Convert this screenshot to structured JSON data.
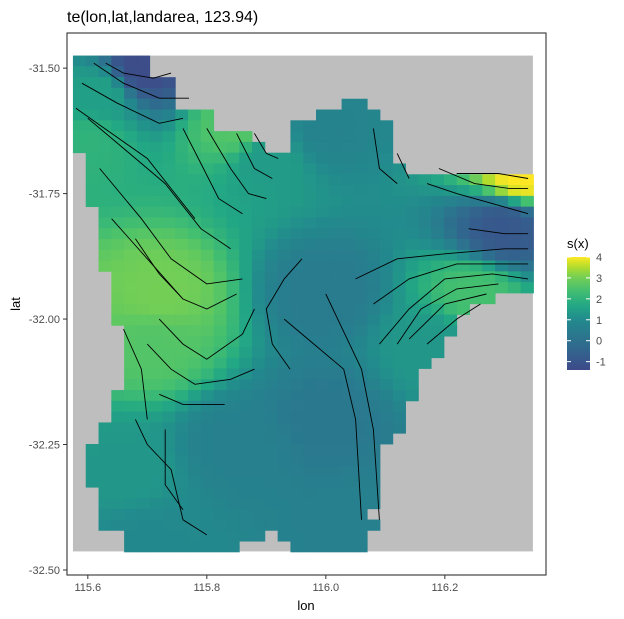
{
  "chart_data": {
    "type": "heatmap",
    "title": "te(lon,lat,landarea, 123.94)",
    "xlabel": "lon",
    "ylabel": "lat",
    "xlim": [
      115.565,
      116.37
    ],
    "ylim": [
      -32.51,
      -31.43
    ],
    "x_ticks": [
      {
        "value": 115.6,
        "label": "115.6"
      },
      {
        "value": 115.8,
        "label": "115.8"
      },
      {
        "value": 116.0,
        "label": "116.0"
      },
      {
        "value": 116.2,
        "label": "116.2"
      }
    ],
    "y_ticks": [
      {
        "value": -31.5,
        "label": "-31.50"
      },
      {
        "value": -31.75,
        "label": "-31.75"
      },
      {
        "value": -32.0,
        "label": "-32.00"
      },
      {
        "value": -32.25,
        "label": "-32.25"
      },
      {
        "value": -32.5,
        "label": "-32.50"
      }
    ],
    "background_extent": {
      "lon": [
        115.575,
        116.348
      ],
      "lat": [
        -32.463,
        -31.475
      ]
    },
    "background_color": "#bebebe",
    "legend": {
      "title": "s(x)",
      "placement": "right",
      "range": [
        -1.4,
        4.0
      ],
      "ticks": [
        {
          "value": 4,
          "label": "4"
        },
        {
          "value": 3,
          "label": "3"
        },
        {
          "value": 2,
          "label": "2"
        },
        {
          "value": 1,
          "label": "1"
        },
        {
          "value": 0,
          "label": "0"
        },
        {
          "value": -1,
          "label": "-1"
        }
      ]
    },
    "colormap": [
      {
        "v": -1.4,
        "color": "#3e4a89"
      },
      {
        "v": -0.5,
        "color": "#32648e"
      },
      {
        "v": 0.3,
        "color": "#2a788e"
      },
      {
        "v": 1.0,
        "color": "#228b8d"
      },
      {
        "v": 1.7,
        "color": "#22a884"
      },
      {
        "v": 2.4,
        "color": "#44bf70"
      },
      {
        "v": 3.1,
        "color": "#7ad151"
      },
      {
        "v": 3.6,
        "color": "#bddf26"
      },
      {
        "v": 4.0,
        "color": "#fde725"
      }
    ],
    "grid_cells": {
      "lon_start": 115.575,
      "lon_step": 0.0215,
      "lat_start": -31.475,
      "lat_step": 0.0215,
      "ncols": 36,
      "nrows": 46
    },
    "surface_anchors": [
      {
        "lon": 115.69,
        "lat": -31.5,
        "value": -1.3
      },
      {
        "lon": 115.62,
        "lat": -31.55,
        "value": 1.5
      },
      {
        "lon": 115.6,
        "lat": -31.65,
        "value": 2.0
      },
      {
        "lon": 115.85,
        "lat": -31.62,
        "value": 2.6
      },
      {
        "lon": 115.9,
        "lat": -31.68,
        "value": 1.4
      },
      {
        "lon": 115.72,
        "lat": -31.95,
        "value": 3.0
      },
      {
        "lon": 115.71,
        "lat": -32.05,
        "value": 2.6
      },
      {
        "lon": 115.66,
        "lat": -32.3,
        "value": 1.3
      },
      {
        "lon": 115.7,
        "lat": -32.45,
        "value": 0.9
      },
      {
        "lon": 116.0,
        "lat": -31.62,
        "value": 0.7
      },
      {
        "lon": 116.0,
        "lat": -31.95,
        "value": 0.4
      },
      {
        "lon": 116.0,
        "lat": -32.2,
        "value": 0.3
      },
      {
        "lon": 116.05,
        "lat": -32.42,
        "value": 0.6
      },
      {
        "lon": 116.3,
        "lat": -31.82,
        "value": -0.9
      },
      {
        "lon": 116.33,
        "lat": -31.71,
        "value": 4.0
      },
      {
        "lon": 116.25,
        "lat": -31.95,
        "value": 2.4
      },
      {
        "lon": 116.18,
        "lat": -32.05,
        "value": 1.3
      },
      {
        "lon": 115.85,
        "lat": -32.25,
        "value": 0.6
      }
    ],
    "contours": [
      [
        [
          115.63,
          -31.49
        ],
        [
          115.66,
          -31.51
        ],
        [
          115.71,
          -31.52
        ],
        [
          115.74,
          -31.51
        ]
      ],
      [
        [
          115.61,
          -31.49
        ],
        [
          115.66,
          -31.53
        ],
        [
          115.72,
          -31.56
        ],
        [
          115.77,
          -31.56
        ]
      ],
      [
        [
          115.59,
          -31.53
        ],
        [
          115.65,
          -31.57
        ],
        [
          115.72,
          -31.61
        ],
        [
          115.76,
          -31.6
        ]
      ],
      [
        [
          115.58,
          -31.58
        ],
        [
          115.64,
          -31.63
        ],
        [
          115.7,
          -31.68
        ],
        [
          115.74,
          -31.74
        ],
        [
          115.78,
          -31.8
        ]
      ],
      [
        [
          115.6,
          -31.6
        ],
        [
          115.67,
          -31.67
        ],
        [
          115.73,
          -31.73
        ],
        [
          115.79,
          -31.82
        ],
        [
          115.84,
          -31.86
        ]
      ],
      [
        [
          115.62,
          -31.7
        ],
        [
          115.69,
          -31.8
        ],
        [
          115.74,
          -31.88
        ],
        [
          115.8,
          -31.93
        ],
        [
          115.86,
          -31.92
        ]
      ],
      [
        [
          115.64,
          -31.8
        ],
        [
          115.7,
          -31.88
        ],
        [
          115.76,
          -31.96
        ],
        [
          115.8,
          -31.98
        ],
        [
          115.85,
          -31.95
        ]
      ],
      [
        [
          115.68,
          -31.84
        ],
        [
          115.72,
          -31.91
        ],
        [
          115.76,
          -31.96
        ]
      ],
      [
        [
          115.66,
          -32.02
        ],
        [
          115.69,
          -32.1
        ],
        [
          115.7,
          -32.2
        ]
      ],
      [
        [
          115.72,
          -32.0
        ],
        [
          115.76,
          -32.05
        ],
        [
          115.8,
          -32.08
        ],
        [
          115.86,
          -32.03
        ],
        [
          115.88,
          -31.98
        ]
      ],
      [
        [
          115.7,
          -32.05
        ],
        [
          115.74,
          -32.1
        ],
        [
          115.78,
          -32.13
        ],
        [
          115.84,
          -32.12
        ],
        [
          115.88,
          -32.1
        ]
      ],
      [
        [
          115.72,
          -32.15
        ],
        [
          115.76,
          -32.17
        ],
        [
          115.83,
          -32.17
        ]
      ],
      [
        [
          115.68,
          -32.2
        ],
        [
          115.7,
          -32.25
        ],
        [
          115.74,
          -32.3
        ],
        [
          115.76,
          -32.4
        ],
        [
          115.8,
          -32.43
        ]
      ],
      [
        [
          115.73,
          -32.22
        ],
        [
          115.73,
          -32.33
        ],
        [
          115.76,
          -32.38
        ]
      ],
      [
        [
          115.76,
          -31.62
        ],
        [
          115.79,
          -31.69
        ],
        [
          115.82,
          -31.76
        ],
        [
          115.86,
          -31.79
        ]
      ],
      [
        [
          115.8,
          -31.62
        ],
        [
          115.84,
          -31.7
        ],
        [
          115.87,
          -31.75
        ],
        [
          115.9,
          -31.76
        ]
      ],
      [
        [
          115.85,
          -31.63
        ],
        [
          115.88,
          -31.7
        ],
        [
          115.91,
          -31.72
        ]
      ],
      [
        [
          115.88,
          -31.63
        ],
        [
          115.9,
          -31.67
        ],
        [
          115.92,
          -31.68
        ]
      ],
      [
        [
          116.08,
          -31.62
        ],
        [
          116.09,
          -31.7
        ],
        [
          116.12,
          -31.73
        ]
      ],
      [
        [
          116.12,
          -31.67
        ],
        [
          116.14,
          -31.72
        ]
      ],
      [
        [
          116.17,
          -31.73
        ],
        [
          116.22,
          -31.75
        ],
        [
          116.28,
          -31.77
        ],
        [
          116.34,
          -31.79
        ]
      ],
      [
        [
          116.19,
          -31.7
        ],
        [
          116.25,
          -31.73
        ],
        [
          116.31,
          -31.74
        ],
        [
          116.34,
          -31.74
        ]
      ],
      [
        [
          116.22,
          -31.71
        ],
        [
          116.29,
          -31.71
        ],
        [
          116.34,
          -31.72
        ]
      ],
      [
        [
          116.24,
          -31.82
        ],
        [
          116.3,
          -31.83
        ],
        [
          116.34,
          -31.83
        ]
      ],
      [
        [
          116.05,
          -31.92
        ],
        [
          116.12,
          -31.88
        ],
        [
          116.2,
          -31.87
        ],
        [
          116.3,
          -31.86
        ],
        [
          116.34,
          -31.86
        ]
      ],
      [
        [
          116.08,
          -31.97
        ],
        [
          116.14,
          -31.92
        ],
        [
          116.22,
          -31.89
        ],
        [
          116.3,
          -31.89
        ],
        [
          116.34,
          -31.89
        ]
      ],
      [
        [
          116.09,
          -32.05
        ],
        [
          116.14,
          -31.98
        ],
        [
          116.2,
          -31.92
        ],
        [
          116.28,
          -31.91
        ],
        [
          116.34,
          -31.92
        ]
      ],
      [
        [
          116.12,
          -32.05
        ],
        [
          116.16,
          -31.98
        ],
        [
          116.22,
          -31.94
        ],
        [
          116.29,
          -31.93
        ]
      ],
      [
        [
          116.14,
          -32.04
        ],
        [
          116.2,
          -31.97
        ],
        [
          116.27,
          -31.95
        ]
      ],
      [
        [
          116.17,
          -32.05
        ],
        [
          116.22,
          -32.0
        ],
        [
          116.26,
          -31.97
        ]
      ],
      [
        [
          116.0,
          -31.95
        ],
        [
          116.02,
          -32.0
        ],
        [
          116.06,
          -32.1
        ],
        [
          116.08,
          -32.22
        ],
        [
          116.09,
          -32.4
        ]
      ],
      [
        [
          115.93,
          -32.0
        ],
        [
          115.98,
          -32.05
        ],
        [
          116.03,
          -32.1
        ],
        [
          116.05,
          -32.2
        ],
        [
          116.06,
          -32.4
        ]
      ],
      [
        [
          115.96,
          -31.88
        ],
        [
          115.93,
          -31.92
        ],
        [
          115.9,
          -31.98
        ],
        [
          115.91,
          -32.05
        ],
        [
          115.94,
          -32.1
        ]
      ]
    ]
  }
}
